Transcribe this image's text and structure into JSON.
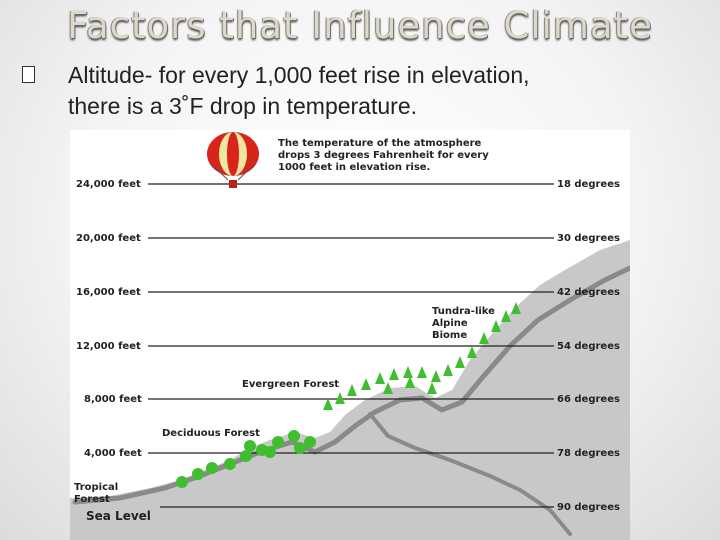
{
  "slide": {
    "title": "Factors that Influence Climate",
    "bullet_icon": "bullet-box-icon",
    "bullet_line1": "Altitude- for every 1,000 feet rise in elevation,",
    "bullet_line2": "there is a 3˚F drop in temperature."
  },
  "diagram": {
    "caption_line1": "The temperature of the atmosphere",
    "caption_line2": "drops 3 degrees Fahrenheit for every",
    "caption_line3": "1000 feet in elevation rise.",
    "levels": [
      {
        "altitude": "24,000 feet",
        "temperature": "18 degrees"
      },
      {
        "altitude": "20,000 feet",
        "temperature": "30 degrees"
      },
      {
        "altitude": "16,000 feet",
        "temperature": "42 degrees"
      },
      {
        "altitude": "12,000 feet",
        "temperature": "54 degrees"
      },
      {
        "altitude": "8,000 feet",
        "temperature": "66 degrees"
      },
      {
        "altitude": "4,000 feet",
        "temperature": "78 degrees"
      },
      {
        "altitude": "Sea Level",
        "temperature": "90 degrees"
      }
    ],
    "biomes": {
      "tundra_line1": "Tundra-like",
      "tundra_line2": "Alpine",
      "tundra_line3": "Biome",
      "evergreen": "Evergreen Forest",
      "deciduous": "Deciduous Forest",
      "tropical_line1": "Tropical",
      "tropical_line2": "Forest"
    },
    "colors": {
      "mountain": "#c8c8c8",
      "ridge": "#8a8a8a",
      "tree": "#3fbf2f",
      "balloon_red": "#d9241c",
      "balloon_yellow": "#f1e6a0"
    }
  }
}
